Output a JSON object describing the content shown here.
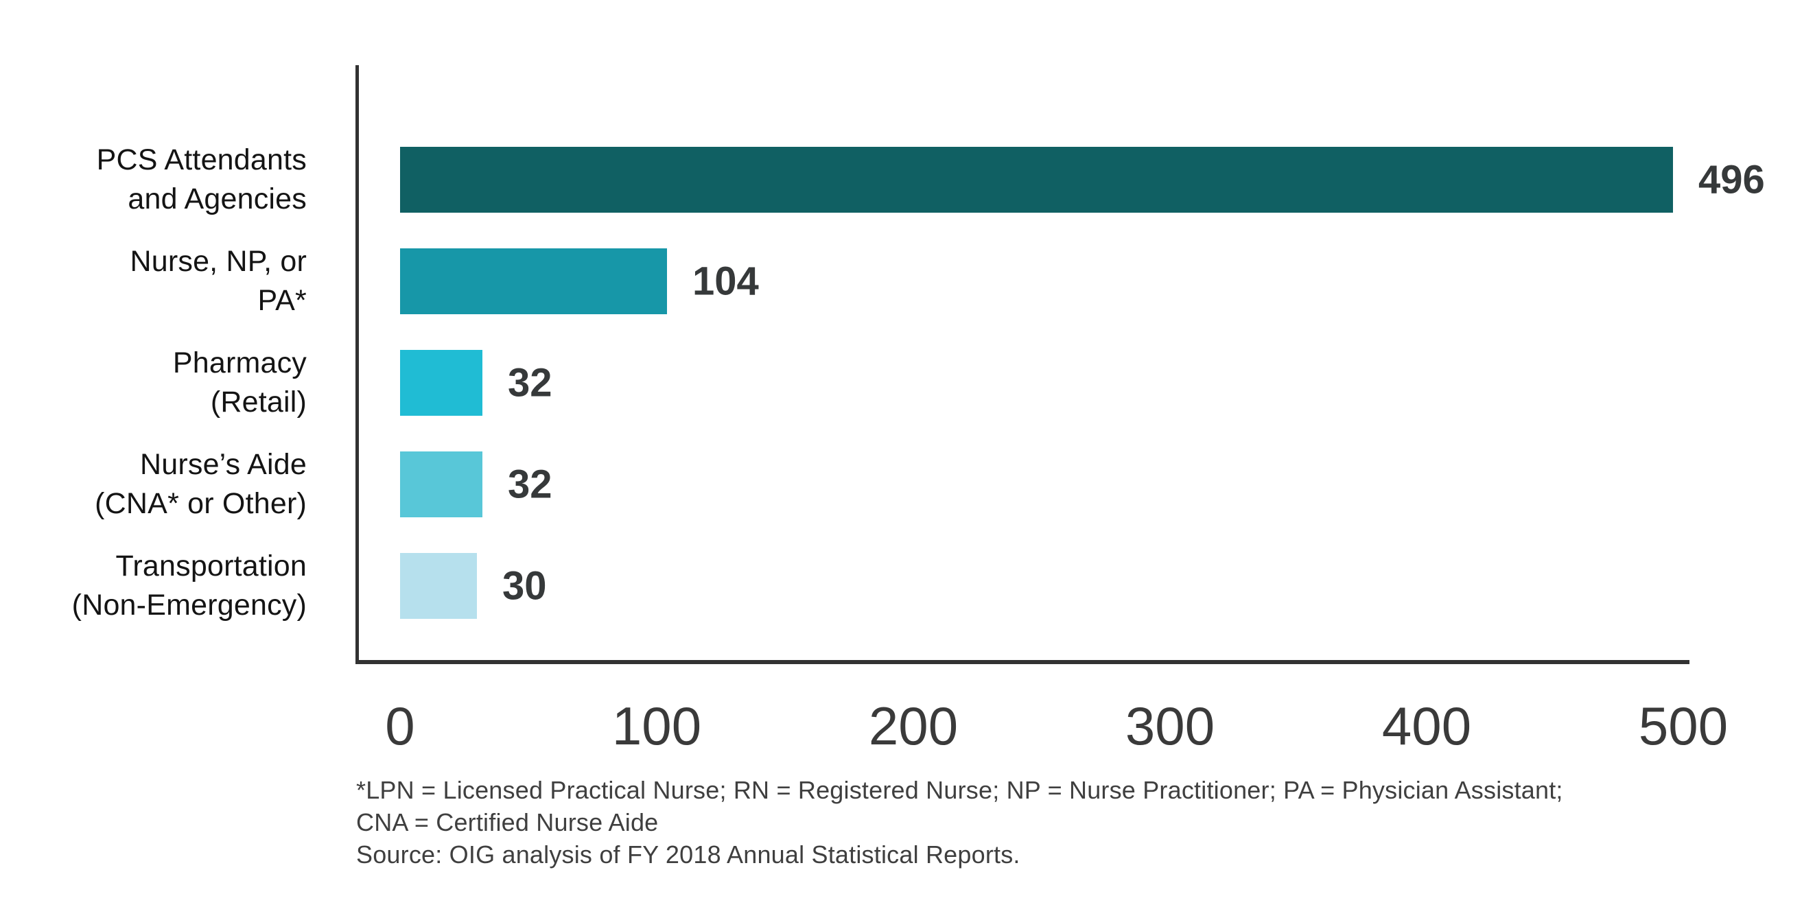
{
  "chart_data": {
    "type": "bar",
    "orientation": "horizontal",
    "title": "",
    "xlabel": "",
    "ylabel": "",
    "xlim": [
      0,
      500
    ],
    "x_ticks": [
      "0",
      "100",
      "200",
      "300",
      "400",
      "500"
    ],
    "grid": false,
    "legend": false,
    "categories": [
      "PCS Attendants and Agencies",
      "Nurse, NP, or PA*",
      "Pharmacy (Retail)",
      "Nurse’s Aide (CNA* or Other)",
      "Transportation (Non-Emergency)"
    ],
    "values": [
      496,
      104,
      32,
      32,
      30
    ],
    "rows": [
      {
        "label_line1": "PCS Attendants",
        "label_line2": "and Agencies",
        "value": "496",
        "color": "#106063"
      },
      {
        "label_line1": "Nurse, NP, or",
        "label_line2": "PA*",
        "value": "104",
        "color": "#1797a8"
      },
      {
        "label_line1": "Pharmacy",
        "label_line2": "(Retail)",
        "value": "32",
        "color": "#20bcd4"
      },
      {
        "label_line1": "Nurse’s Aide",
        "label_line2": "(CNA* or Other)",
        "value": "32",
        "color": "#58c7d8"
      },
      {
        "label_line1": "Transportation",
        "label_line2": "(Non-Emergency)",
        "value": "30",
        "color": "#b6e0ed"
      }
    ]
  },
  "footnotes": {
    "line1": "*LPN = Licensed Practical Nurse; RN = Registered Nurse; NP = Nurse Practitioner; PA = Physician Assistant;",
    "line2": "CNA = Certified Nurse Aide",
    "line3": "Source: OIG analysis of FY 2018 Annual Statistical Reports."
  },
  "colors": {
    "background": "#ffffff",
    "axis": "#323232",
    "category_label": "#141414",
    "value_label": "#36393a",
    "tick_label": "#3a3a3a",
    "footnote": "#3f3f3f"
  }
}
